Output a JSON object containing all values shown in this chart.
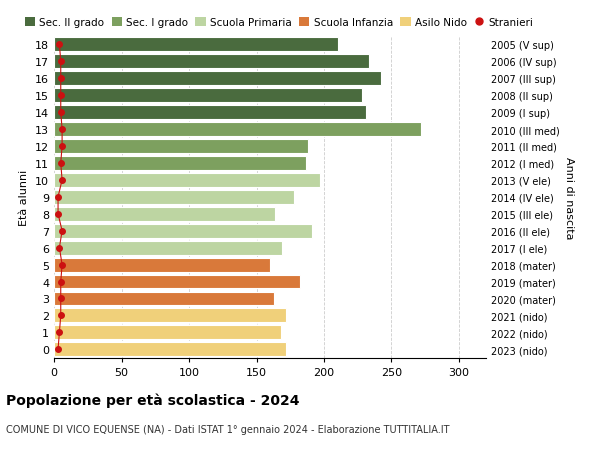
{
  "ages": [
    18,
    17,
    16,
    15,
    14,
    13,
    12,
    11,
    10,
    9,
    8,
    7,
    6,
    5,
    4,
    3,
    2,
    1,
    0
  ],
  "values": [
    210,
    233,
    242,
    228,
    231,
    272,
    188,
    187,
    197,
    178,
    164,
    191,
    169,
    160,
    182,
    163,
    172,
    168,
    172
  ],
  "stranieri": [
    4,
    5,
    5,
    5,
    5,
    6,
    6,
    5,
    6,
    3,
    3,
    6,
    4,
    6,
    5,
    5,
    5,
    4,
    3
  ],
  "right_labels": [
    "2005 (V sup)",
    "2006 (IV sup)",
    "2007 (III sup)",
    "2008 (II sup)",
    "2009 (I sup)",
    "2010 (III med)",
    "2011 (II med)",
    "2012 (I med)",
    "2013 (V ele)",
    "2014 (IV ele)",
    "2015 (III ele)",
    "2016 (II ele)",
    "2017 (I ele)",
    "2018 (mater)",
    "2019 (mater)",
    "2020 (mater)",
    "2021 (nido)",
    "2022 (nido)",
    "2023 (nido)"
  ],
  "bar_colors": [
    "#4a6b3e",
    "#4a6b3e",
    "#4a6b3e",
    "#4a6b3e",
    "#4a6b3e",
    "#7da05f",
    "#7da05f",
    "#7da05f",
    "#bdd5a2",
    "#bdd5a2",
    "#bdd5a2",
    "#bdd5a2",
    "#bdd5a2",
    "#d9793a",
    "#d9793a",
    "#d9793a",
    "#f0d07a",
    "#f0d07a",
    "#f0d07a"
  ],
  "legend_labels": [
    "Sec. II grado",
    "Sec. I grado",
    "Scuola Primaria",
    "Scuola Infanzia",
    "Asilo Nido",
    "Stranieri"
  ],
  "legend_colors": [
    "#4a6b3e",
    "#7da05f",
    "#bdd5a2",
    "#d9793a",
    "#f0d07a",
    "#cc1111"
  ],
  "title": "Popolazione per età scolastica - 2024",
  "subtitle": "COMUNE DI VICO EQUENSE (NA) - Dati ISTAT 1° gennaio 2024 - Elaborazione TUTTITALIA.IT",
  "ylabel": "Età alunni",
  "right_ylabel": "Anni di nascita",
  "xlim": [
    0,
    320
  ],
  "xticks": [
    0,
    50,
    100,
    150,
    200,
    250,
    300
  ],
  "stranieri_color": "#cc1111",
  "bar_height": 0.82,
  "background_color": "#ffffff",
  "grid_color": "#cccccc"
}
